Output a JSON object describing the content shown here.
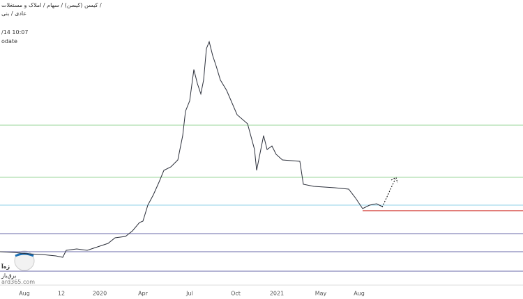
{
  "header": {
    "path": "کیسن (کیسن) / سهام / املاک و مستغلات /",
    "subtitle": "عادی / بنی",
    "datetime": "/14 10:07",
    "note": "odate"
  },
  "watermark": {
    "logo": "ژه‌آ",
    "tagline": "برق‌باز",
    "site": "ard365.com"
  },
  "chart_data": {
    "type": "line",
    "x": [
      0,
      20,
      40,
      60,
      80,
      90,
      95,
      110,
      125,
      140,
      155,
      165,
      180,
      190,
      200,
      205,
      212,
      220,
      228,
      235,
      245,
      255,
      262,
      266,
      272,
      278,
      283,
      288,
      292,
      296,
      300,
      305,
      310,
      316,
      325,
      340,
      355,
      365,
      368,
      372,
      378,
      383,
      390,
      396,
      405,
      430,
      435,
      450,
      480,
      500,
      510,
      520,
      530,
      540,
      548
    ],
    "series": [
      {
        "color": "#2a2e39",
        "values": [
          48,
          47,
          45,
          44,
          42,
          40,
          50,
          52,
          50,
          55,
          60,
          68,
          70,
          78,
          90,
          92,
          115,
          130,
          148,
          165,
          170,
          180,
          215,
          250,
          265,
          310,
          290,
          275,
          295,
          340,
          350,
          330,
          315,
          295,
          280,
          245,
          232,
          195,
          165,
          185,
          215,
          195,
          200,
          188,
          180,
          178,
          145,
          142,
          140,
          138,
          125,
          110,
          115,
          117,
          113
        ]
      }
    ],
    "xlim": [
      0,
      750
    ],
    "ylim": [
      0,
      410
    ],
    "xticks": [
      {
        "value": 35,
        "label": "Aug"
      },
      {
        "value": 88,
        "label": "12"
      },
      {
        "value": 143,
        "label": "2020"
      },
      {
        "value": 205,
        "label": "Apr"
      },
      {
        "value": 272,
        "label": "Jul"
      },
      {
        "value": 338,
        "label": "Oct"
      },
      {
        "value": 397,
        "label": "2021"
      },
      {
        "value": 460,
        "label": "May"
      },
      {
        "value": 515,
        "label": "Aug"
      }
    ],
    "levels": [
      {
        "value": 230,
        "color": "#9ad69a"
      },
      {
        "value": 155,
        "color": "#9ad69a"
      },
      {
        "value": 115,
        "color": "#8fd0e8"
      },
      {
        "value": 74,
        "color": "#6a6aaa"
      },
      {
        "value": 48,
        "color": "#6a6aaa"
      },
      {
        "value": 20,
        "color": "#6a6aaa"
      },
      {
        "value": 107,
        "color": "#d9534f",
        "from": 520
      }
    ]
  }
}
